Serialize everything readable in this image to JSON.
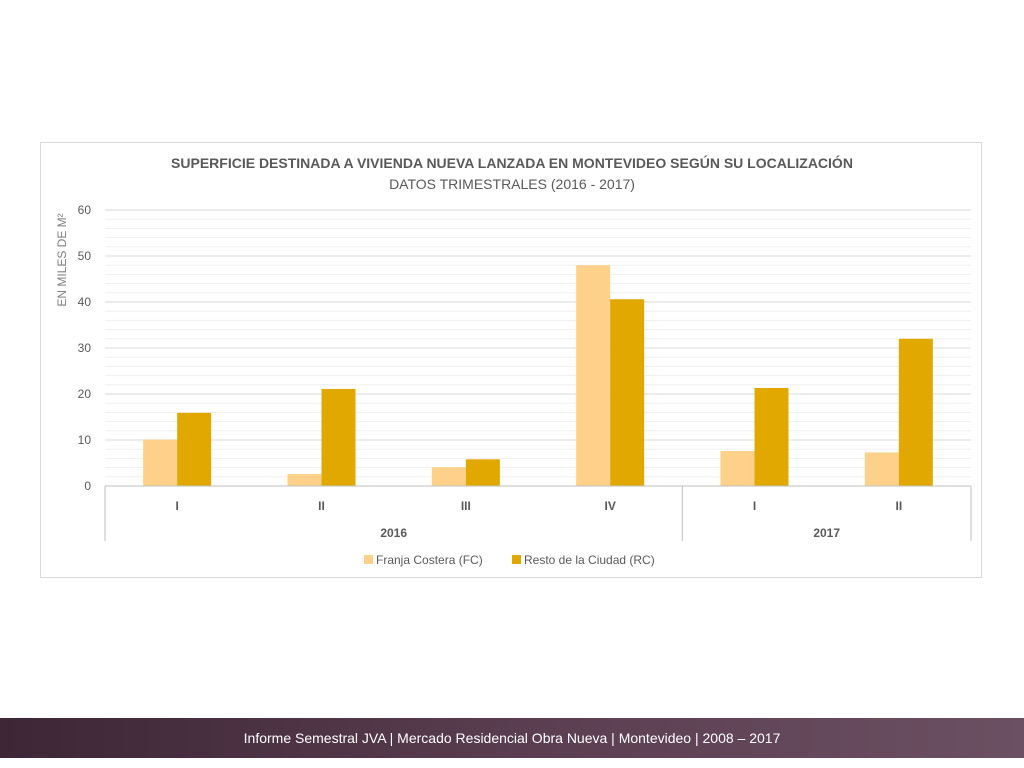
{
  "footer": {
    "text": "Informe Semestral JVA | Mercado Residencial Obra Nueva | Montevideo | 2008 – 2017"
  },
  "colors": {
    "fc": "#fdd18a",
    "rc": "#e0a800",
    "title": "#595959",
    "grid": "#d9d9d9",
    "axis": "#bfbfbf",
    "footer_bg": "#4a3042"
  },
  "chart_data": {
    "type": "bar",
    "title": "SUPERFICIE DESTINADA A VIVIENDA NUEVA LANZADA EN MONTEVIDEO SEGÚN SU LOCALIZACIÓN",
    "subtitle": "DATOS TRIMESTRALES (2016 - 2017)",
    "ylabel": "EN MILES DE M²",
    "xlabel": "",
    "ylim": [
      0,
      60
    ],
    "yticks": [
      "0",
      "10",
      "20",
      "30",
      "40",
      "50",
      "60"
    ],
    "categories": [
      "I",
      "II",
      "III",
      "IV",
      "I",
      "II"
    ],
    "groups": [
      {
        "label": "2016",
        "span": 4
      },
      {
        "label": "2017",
        "span": 2
      }
    ],
    "series": [
      {
        "name": "Franja Costera (FC)",
        "values": [
          10.1,
          2.6,
          4.1,
          48.0,
          7.6,
          7.3
        ]
      },
      {
        "name": "Resto de la Ciudad (RC)",
        "values": [
          15.9,
          21.1,
          5.8,
          40.6,
          21.3,
          32.0
        ]
      }
    ],
    "grid": true,
    "legend": "bottom"
  }
}
